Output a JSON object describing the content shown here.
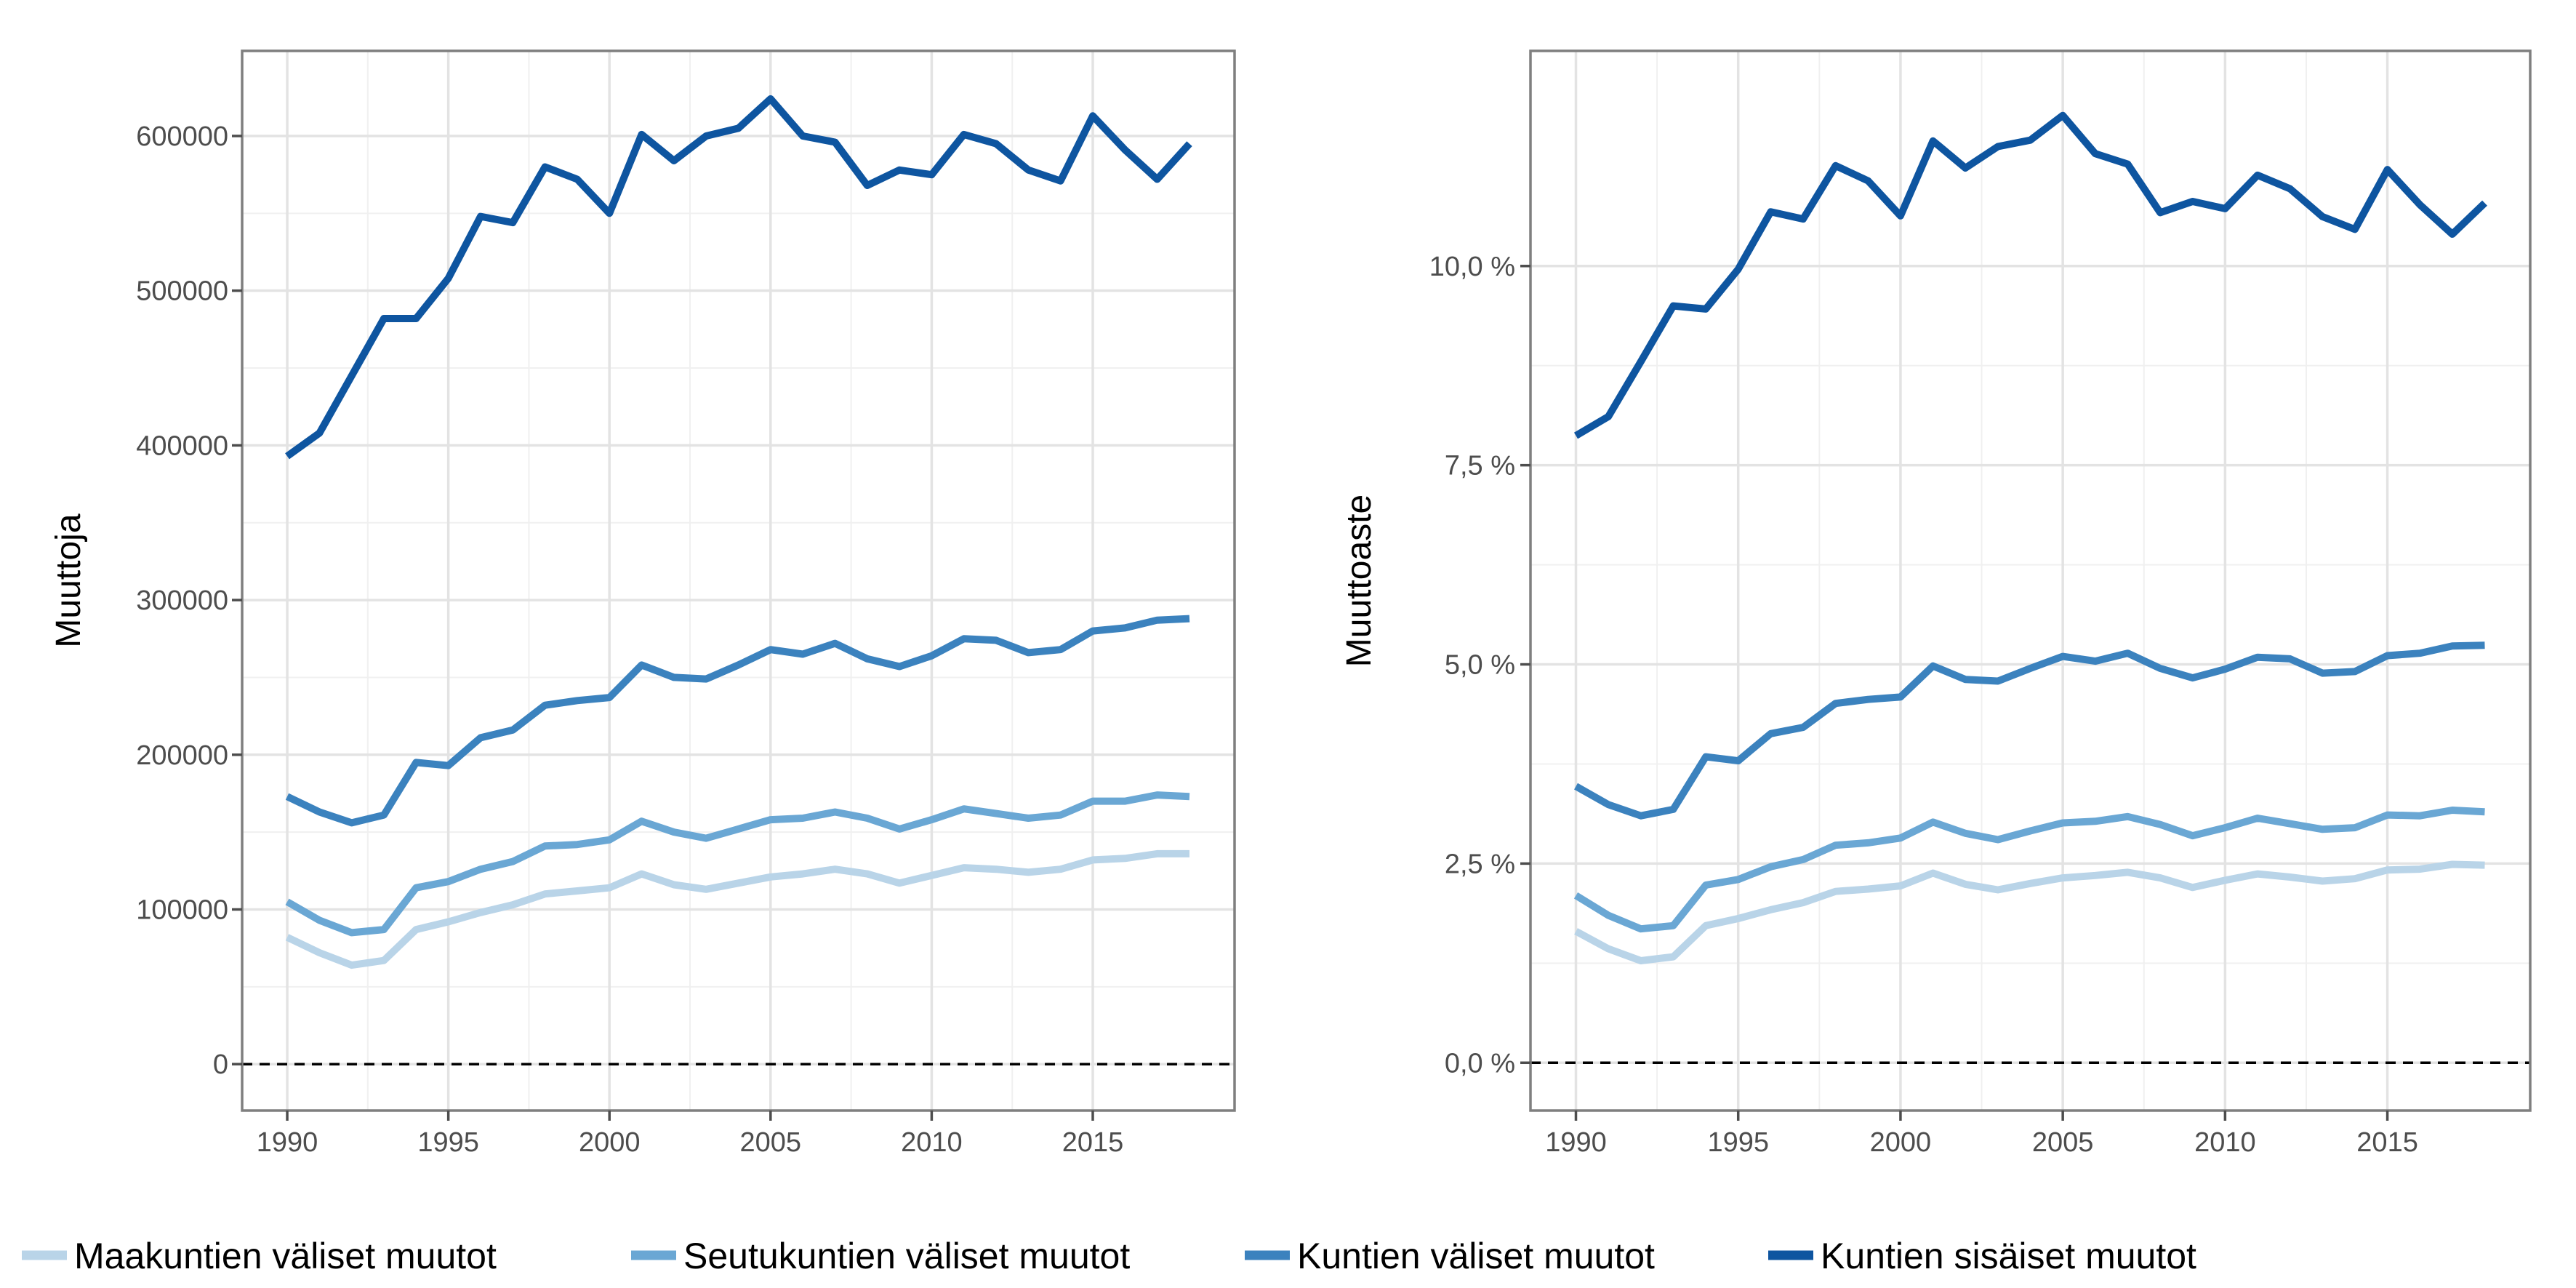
{
  "chart_data": [
    {
      "type": "line",
      "ylabel": "Muuttoja",
      "xlabel": "",
      "xlim": [
        1988.6,
        2019.4
      ],
      "ylim": [
        -30000,
        655000
      ],
      "x_ticks": [
        1990,
        1995,
        2000,
        2005,
        2010,
        2015
      ],
      "y_ticks": [
        0,
        100000,
        200000,
        300000,
        400000,
        500000,
        600000
      ],
      "y_tick_labels": [
        "0",
        "100000",
        "200000",
        "300000",
        "400000",
        "500000",
        "600000"
      ],
      "reference_line": 0,
      "grid": true,
      "x": [
        1990,
        1991,
        1992,
        1993,
        1994,
        1995,
        1996,
        1997,
        1998,
        1999,
        2000,
        2001,
        2002,
        2003,
        2004,
        2005,
        2006,
        2007,
        2008,
        2009,
        2010,
        2011,
        2012,
        2013,
        2014,
        2015,
        2016,
        2017,
        2018
      ],
      "series": [
        {
          "name": "Maakuntien väliset muutot",
          "color": "#b9d4e8",
          "values": [
            82000,
            72000,
            64000,
            67000,
            87000,
            92000,
            98000,
            103000,
            110000,
            112000,
            114000,
            123000,
            116000,
            113000,
            117000,
            121000,
            123000,
            126000,
            123000,
            117000,
            122000,
            127000,
            126000,
            124000,
            126000,
            132000,
            133000,
            136000,
            136000
          ]
        },
        {
          "name": "Seutukuntien väliset muutot",
          "color": "#6aa7d4",
          "values": [
            105000,
            93000,
            85000,
            87000,
            114000,
            118000,
            126000,
            131000,
            141000,
            142000,
            145000,
            157000,
            150000,
            146000,
            152000,
            158000,
            159000,
            163000,
            159000,
            152000,
            158000,
            165000,
            162000,
            159000,
            161000,
            170000,
            170000,
            174000,
            173000
          ]
        },
        {
          "name": "Kuntien väliset muutot",
          "color": "#3b82be",
          "values": [
            173000,
            163000,
            156000,
            161000,
            195000,
            193000,
            211000,
            216000,
            232000,
            235000,
            237000,
            258000,
            250000,
            249000,
            258000,
            268000,
            265000,
            272000,
            262000,
            257000,
            264000,
            275000,
            274000,
            266000,
            268000,
            280000,
            282000,
            287000,
            288000
          ]
        },
        {
          "name": "Kuntien sisäiset muutot",
          "color": "#0e55a0",
          "values": [
            393000,
            408000,
            445000,
            482000,
            482000,
            508000,
            548000,
            544000,
            580000,
            572000,
            550000,
            601000,
            584000,
            600000,
            605000,
            624000,
            600000,
            596000,
            568000,
            578000,
            575000,
            601000,
            595000,
            578000,
            571000,
            613000,
            591000,
            572000,
            595000
          ]
        }
      ]
    },
    {
      "type": "line",
      "ylabel": "Muuttoaste",
      "xlabel": "",
      "xlim": [
        1988.6,
        2019.4
      ],
      "ylim": [
        -0.6,
        12.7
      ],
      "x_ticks": [
        1990,
        1995,
        2000,
        2005,
        2010,
        2015
      ],
      "y_ticks": [
        0,
        2.5,
        5,
        7.5,
        10
      ],
      "y_tick_labels": [
        "0,0 %",
        "2,5 %",
        "5,0 %",
        "7,5 %",
        "10,0 %"
      ],
      "reference_line": 0,
      "grid": true,
      "x": [
        1990,
        1991,
        1992,
        1993,
        1994,
        1995,
        1996,
        1997,
        1998,
        1999,
        2000,
        2001,
        2002,
        2003,
        2004,
        2005,
        2006,
        2007,
        2008,
        2009,
        2010,
        2011,
        2012,
        2013,
        2014,
        2015,
        2016,
        2017,
        2018
      ],
      "series": [
        {
          "name": "Maakuntien väliset muutot",
          "color": "#b9d4e8",
          "values": [
            1.65,
            1.43,
            1.28,
            1.33,
            1.72,
            1.81,
            1.92,
            2.01,
            2.15,
            2.18,
            2.22,
            2.38,
            2.24,
            2.17,
            2.25,
            2.32,
            2.35,
            2.39,
            2.32,
            2.2,
            2.29,
            2.37,
            2.33,
            2.28,
            2.31,
            2.42,
            2.43,
            2.49,
            2.48
          ]
        },
        {
          "name": "Seutukuntien väliset muutot",
          "color": "#6aa7d4",
          "values": [
            2.1,
            1.85,
            1.68,
            1.72,
            2.23,
            2.3,
            2.46,
            2.55,
            2.73,
            2.76,
            2.82,
            3.02,
            2.88,
            2.8,
            2.91,
            3.01,
            3.03,
            3.09,
            2.99,
            2.85,
            2.95,
            3.07,
            3.0,
            2.93,
            2.95,
            3.11,
            3.1,
            3.17,
            3.15
          ]
        },
        {
          "name": "Kuntien väliset muutot",
          "color": "#3b82be",
          "values": [
            3.47,
            3.24,
            3.1,
            3.18,
            3.84,
            3.79,
            4.13,
            4.21,
            4.51,
            4.56,
            4.59,
            4.98,
            4.81,
            4.79,
            4.95,
            5.1,
            5.04,
            5.14,
            4.95,
            4.83,
            4.94,
            5.09,
            5.07,
            4.89,
            4.91,
            5.11,
            5.14,
            5.23,
            5.24
          ]
        },
        {
          "name": "Kuntien sisäiset muutot",
          "color": "#0e55a0",
          "values": [
            7.87,
            8.11,
            8.8,
            9.5,
            9.46,
            9.96,
            10.68,
            10.59,
            11.26,
            11.07,
            10.63,
            11.57,
            11.23,
            11.5,
            11.58,
            11.89,
            11.41,
            11.28,
            10.67,
            10.81,
            10.72,
            11.14,
            10.97,
            10.62,
            10.46,
            11.21,
            10.77,
            10.4,
            10.79
          ]
        }
      ]
    }
  ],
  "legend": {
    "position": "bottom",
    "items": [
      {
        "label": "Maakuntien väliset muutot",
        "color": "#b9d4e8"
      },
      {
        "label": "Seutukuntien väliset muutot",
        "color": "#6aa7d4"
      },
      {
        "label": "Kuntien väliset muutot",
        "color": "#3b82be"
      },
      {
        "label": "Kuntien sisäiset muutot",
        "color": "#0e55a0"
      }
    ]
  }
}
